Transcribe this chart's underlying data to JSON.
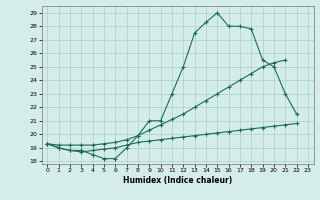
{
  "line1_x": [
    0,
    1,
    2,
    3,
    4,
    5,
    6,
    7,
    8,
    9,
    10,
    11,
    12,
    13,
    14,
    15,
    16,
    17,
    18,
    19,
    20,
    21,
    22
  ],
  "line1_y": [
    19.3,
    19.0,
    18.8,
    18.8,
    18.5,
    18.2,
    18.2,
    19.0,
    19.9,
    21.0,
    21.0,
    23.0,
    25.0,
    27.5,
    28.3,
    29.0,
    28.0,
    28.0,
    27.8,
    25.5,
    25.0,
    23.0,
    21.5
  ],
  "line2_x": [
    0,
    1,
    2,
    3,
    4,
    5,
    6,
    7,
    8,
    9,
    10,
    11,
    12,
    13,
    14,
    15,
    16,
    17,
    18,
    19,
    20,
    21
  ],
  "line2_y": [
    19.3,
    19.2,
    19.2,
    19.2,
    19.2,
    19.3,
    19.4,
    19.6,
    19.9,
    20.3,
    20.7,
    21.1,
    21.5,
    22.0,
    22.5,
    23.0,
    23.5,
    24.0,
    24.5,
    25.0,
    25.3,
    25.5
  ],
  "line3_x": [
    0,
    1,
    2,
    3,
    4,
    5,
    6,
    7,
    8,
    9,
    10,
    11,
    12,
    13,
    14,
    15,
    16,
    17,
    18,
    19,
    20,
    21,
    22
  ],
  "line3_y": [
    19.3,
    19.0,
    18.8,
    18.7,
    18.8,
    18.9,
    19.0,
    19.2,
    19.4,
    19.5,
    19.6,
    19.7,
    19.8,
    19.9,
    20.0,
    20.1,
    20.2,
    20.3,
    20.4,
    20.5,
    20.6,
    20.7,
    20.8
  ],
  "color": "#1a6b5a",
  "bg_color": "#d4ede8",
  "grid_color": "#a8cfc8",
  "xlabel": "Humidex (Indice chaleur)",
  "xlim": [
    -0.5,
    23.5
  ],
  "ylim": [
    17.8,
    29.5
  ],
  "yticks": [
    18,
    19,
    20,
    21,
    22,
    23,
    24,
    25,
    26,
    27,
    28,
    29
  ],
  "xticks": [
    0,
    1,
    2,
    3,
    4,
    5,
    6,
    7,
    8,
    9,
    10,
    11,
    12,
    13,
    14,
    15,
    16,
    17,
    18,
    19,
    20,
    21,
    22,
    23
  ]
}
